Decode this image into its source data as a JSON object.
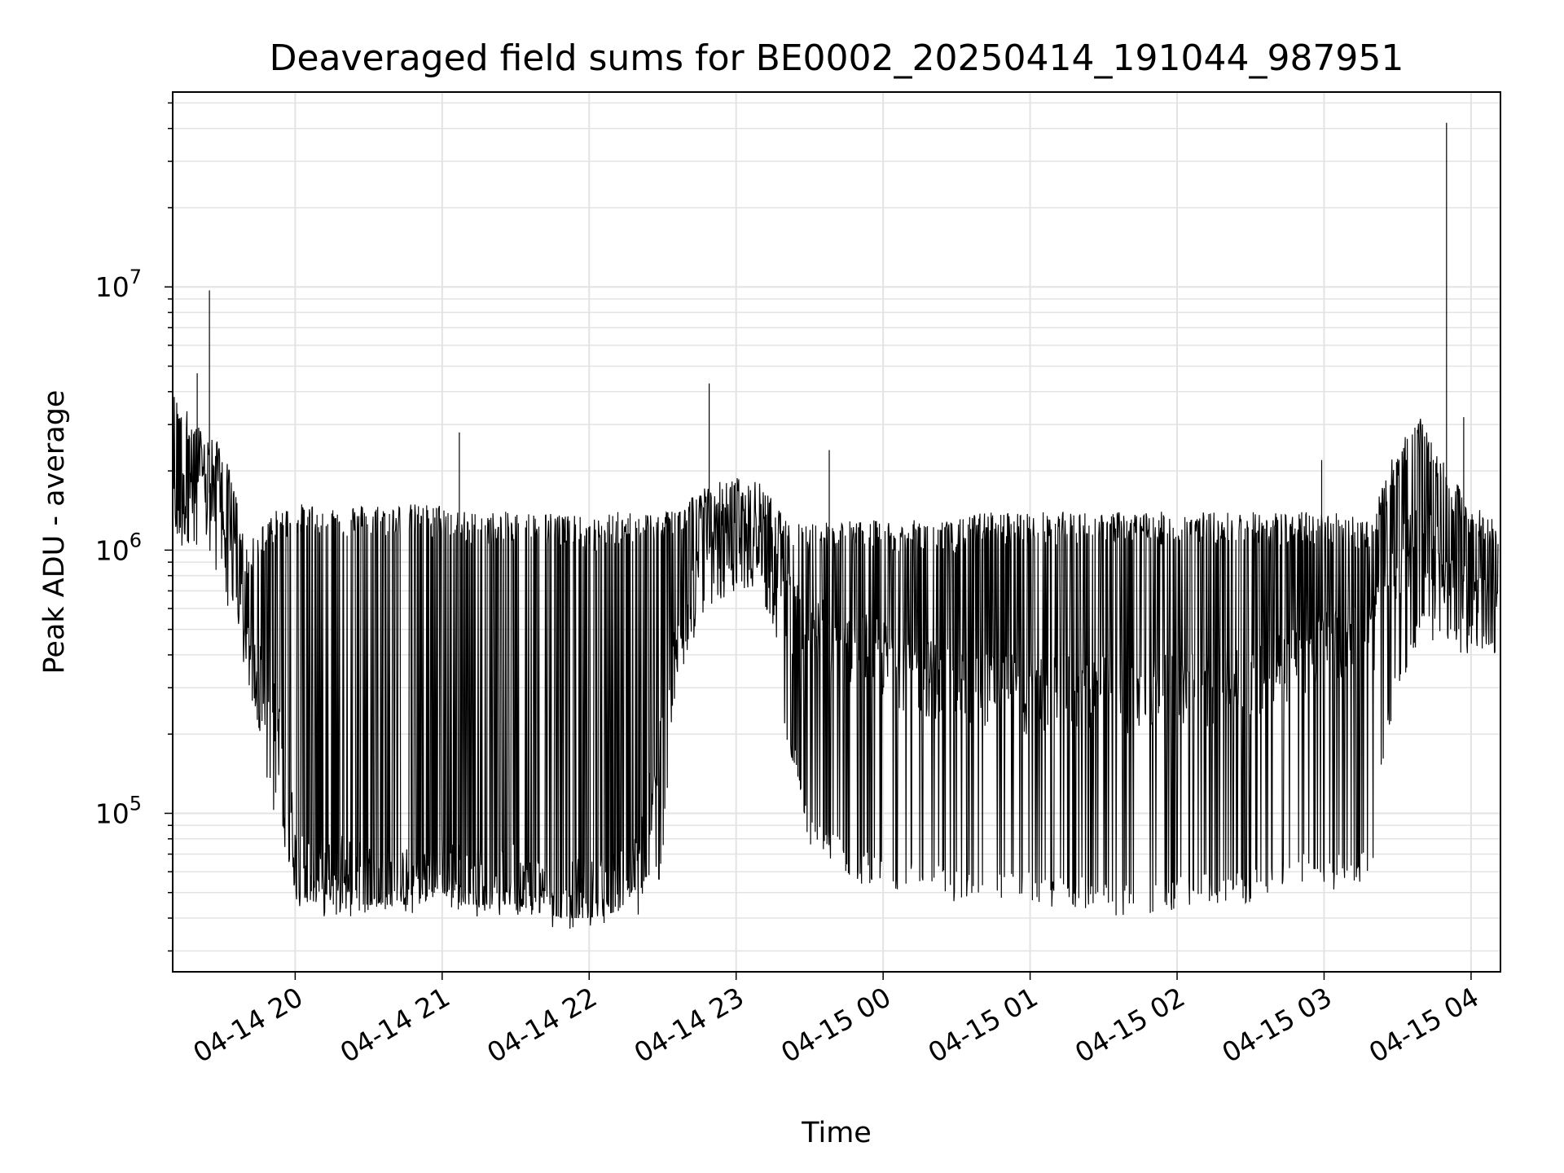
{
  "chart_data": {
    "type": "line",
    "title": "Deaveraged field sums for BE0002_20250414_191044_987951",
    "xlabel": "Time",
    "ylabel": "Peak ADU - average",
    "yscale": "log",
    "ylim": [
      25000,
      55000000
    ],
    "xlim": [
      "2025-04-14 19:10",
      "2025-04-15 04:12"
    ],
    "x_ticks": [
      "04-14 20",
      "04-14 21",
      "04-14 22",
      "04-14 23",
      "04-15 00",
      "04-15 01",
      "04-15 02",
      "04-15 03",
      "04-15 04"
    ],
    "y_ticks": [
      {
        "label_base": "10",
        "label_exp": "5",
        "value": 100000
      },
      {
        "label_base": "10",
        "label_exp": "6",
        "value": 1000000
      },
      {
        "label_base": "10",
        "label_exp": "7",
        "value": 10000000
      }
    ],
    "grid": true,
    "line_color": "#000000",
    "series": [
      {
        "x": [
          "2025-04-14 19:10",
          "2025-04-14 19:20",
          "2025-04-14 19:30",
          "2025-04-14 19:40",
          "2025-04-14 19:50",
          "2025-04-14 20:00",
          "2025-04-14 20:10",
          "2025-04-14 20:20",
          "2025-04-14 20:30",
          "2025-04-14 20:40",
          "2025-04-14 20:50",
          "2025-04-14 21:00",
          "2025-04-14 21:10",
          "2025-04-14 21:20",
          "2025-04-14 21:30",
          "2025-04-14 21:40",
          "2025-04-14 21:50",
          "2025-04-14 22:00",
          "2025-04-14 22:10",
          "2025-04-14 22:20",
          "2025-04-14 22:30",
          "2025-04-14 22:40",
          "2025-04-14 22:50",
          "2025-04-14 23:00",
          "2025-04-14 23:10",
          "2025-04-14 23:20",
          "2025-04-14 23:30",
          "2025-04-14 23:40",
          "2025-04-14 23:50",
          "2025-04-15 00:00",
          "2025-04-15 00:10",
          "2025-04-15 00:20",
          "2025-04-15 00:30",
          "2025-04-15 00:40",
          "2025-04-15 00:50",
          "2025-04-15 01:00",
          "2025-04-15 01:10",
          "2025-04-15 01:20",
          "2025-04-15 01:30",
          "2025-04-15 01:40",
          "2025-04-15 01:50",
          "2025-04-15 02:00",
          "2025-04-15 02:10",
          "2025-04-15 02:20",
          "2025-04-15 02:30",
          "2025-04-15 02:40",
          "2025-04-15 02:50",
          "2025-04-15 03:00",
          "2025-04-15 03:10",
          "2025-04-15 03:20",
          "2025-04-15 03:30",
          "2025-04-15 03:40",
          "2025-04-15 03:50",
          "2025-04-15 04:00",
          "2025-04-15 04:10"
        ],
        "y": [
          1700000,
          1800000,
          1500000,
          450000,
          300000,
          75000,
          65000,
          70000,
          65000,
          60000,
          65000,
          70000,
          65000,
          60000,
          65000,
          60000,
          60000,
          55000,
          60000,
          70000,
          200000,
          700000,
          1000000,
          1100000,
          1300000,
          700000,
          600000,
          500000,
          500000,
          450000,
          400000,
          380000,
          350000,
          360000,
          340000,
          320000,
          330000,
          340000,
          330000,
          320000,
          330000,
          340000,
          350000,
          360000,
          380000,
          420000,
          450000,
          500000,
          520000,
          550000,
          1000000,
          1300000,
          900000,
          700000,
          600000
        ],
        "y_min": [
          1000000,
          1000000,
          800000,
          300000,
          120000,
          50000,
          45000,
          45000,
          45000,
          45000,
          45000,
          50000,
          45000,
          45000,
          45000,
          42000,
          40000,
          40000,
          42000,
          45000,
          60000,
          450000,
          650000,
          750000,
          800000,
          200000,
          80000,
          70000,
          60000,
          60000,
          55000,
          55000,
          50000,
          50000,
          50000,
          50000,
          48000,
          48000,
          45000,
          45000,
          45000,
          48000,
          50000,
          50000,
          50000,
          55000,
          60000,
          55000,
          60000,
          60000,
          300000,
          500000,
          500000,
          400000,
          450000
        ],
        "y_max": [
          4000000,
          3000000,
          2500000,
          1000000,
          1400000,
          1500000,
          1500000,
          1500000,
          1500000,
          1500000,
          1500000,
          1500000,
          1400000,
          1400000,
          1400000,
          1400000,
          1400000,
          1300000,
          1400000,
          1400000,
          1400000,
          1600000,
          1800000,
          1900000,
          1800000,
          1300000,
          1300000,
          1300000,
          1300000,
          1300000,
          1300000,
          1300000,
          1300000,
          1400000,
          1400000,
          1400000,
          1400000,
          1400000,
          1400000,
          1400000,
          1400000,
          1400000,
          1400000,
          1400000,
          1400000,
          1400000,
          1400000,
          1400000,
          1400000,
          1300000,
          2500000,
          3200000,
          2000000,
          1500000,
          1300000
        ]
      }
    ],
    "spikes": [
      {
        "x": "2025-04-14 19:25",
        "y": 9700000
      },
      {
        "x": "2025-04-14 19:20",
        "y": 4700000
      },
      {
        "x": "2025-04-14 21:07",
        "y": 2800000
      },
      {
        "x": "2025-04-14 22:49",
        "y": 4300000
      },
      {
        "x": "2025-04-14 23:38",
        "y": 2400000
      },
      {
        "x": "2025-04-15 02:59",
        "y": 2200000
      },
      {
        "x": "2025-04-15 03:50",
        "y": 42000000
      },
      {
        "x": "2025-04-15 03:57",
        "y": 3200000
      }
    ]
  }
}
